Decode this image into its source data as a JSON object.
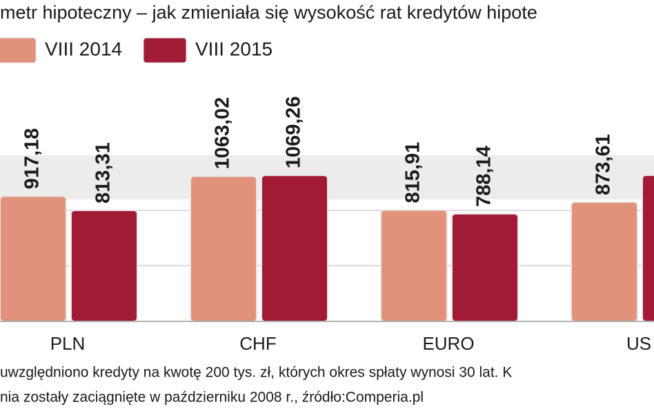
{
  "chart_data": {
    "type": "bar",
    "title": "metr hipoteczny – jak zmieniała się wysokość rat kredytów hipote",
    "categories": [
      "PLN",
      "CHF",
      "EURO",
      "US"
    ],
    "series": [
      {
        "name": "VIII 2014",
        "color": "#e0927b",
        "values": [
          917.18,
          1063.02,
          815.91,
          873.61
        ],
        "value_labels": [
          "917,18",
          "1063,02",
          "815,91",
          "873,61"
        ]
      },
      {
        "name": "VIII 2015",
        "color": "#a11b35",
        "values": [
          813.31,
          1069.26,
          788.14,
          1070
        ],
        "value_labels": [
          "813,31",
          "1069,26",
          "788,14",
          null
        ]
      }
    ],
    "ylim": [
      0,
      1200
    ],
    "notes": [
      "uwzględniono kredyty na kwotę 200 tys. zł, których okres spłaty wynosi 30 lat. K",
      "nia zostały zaciągnięte w październiku 2008 r., źródło:Comperia.pl"
    ]
  }
}
